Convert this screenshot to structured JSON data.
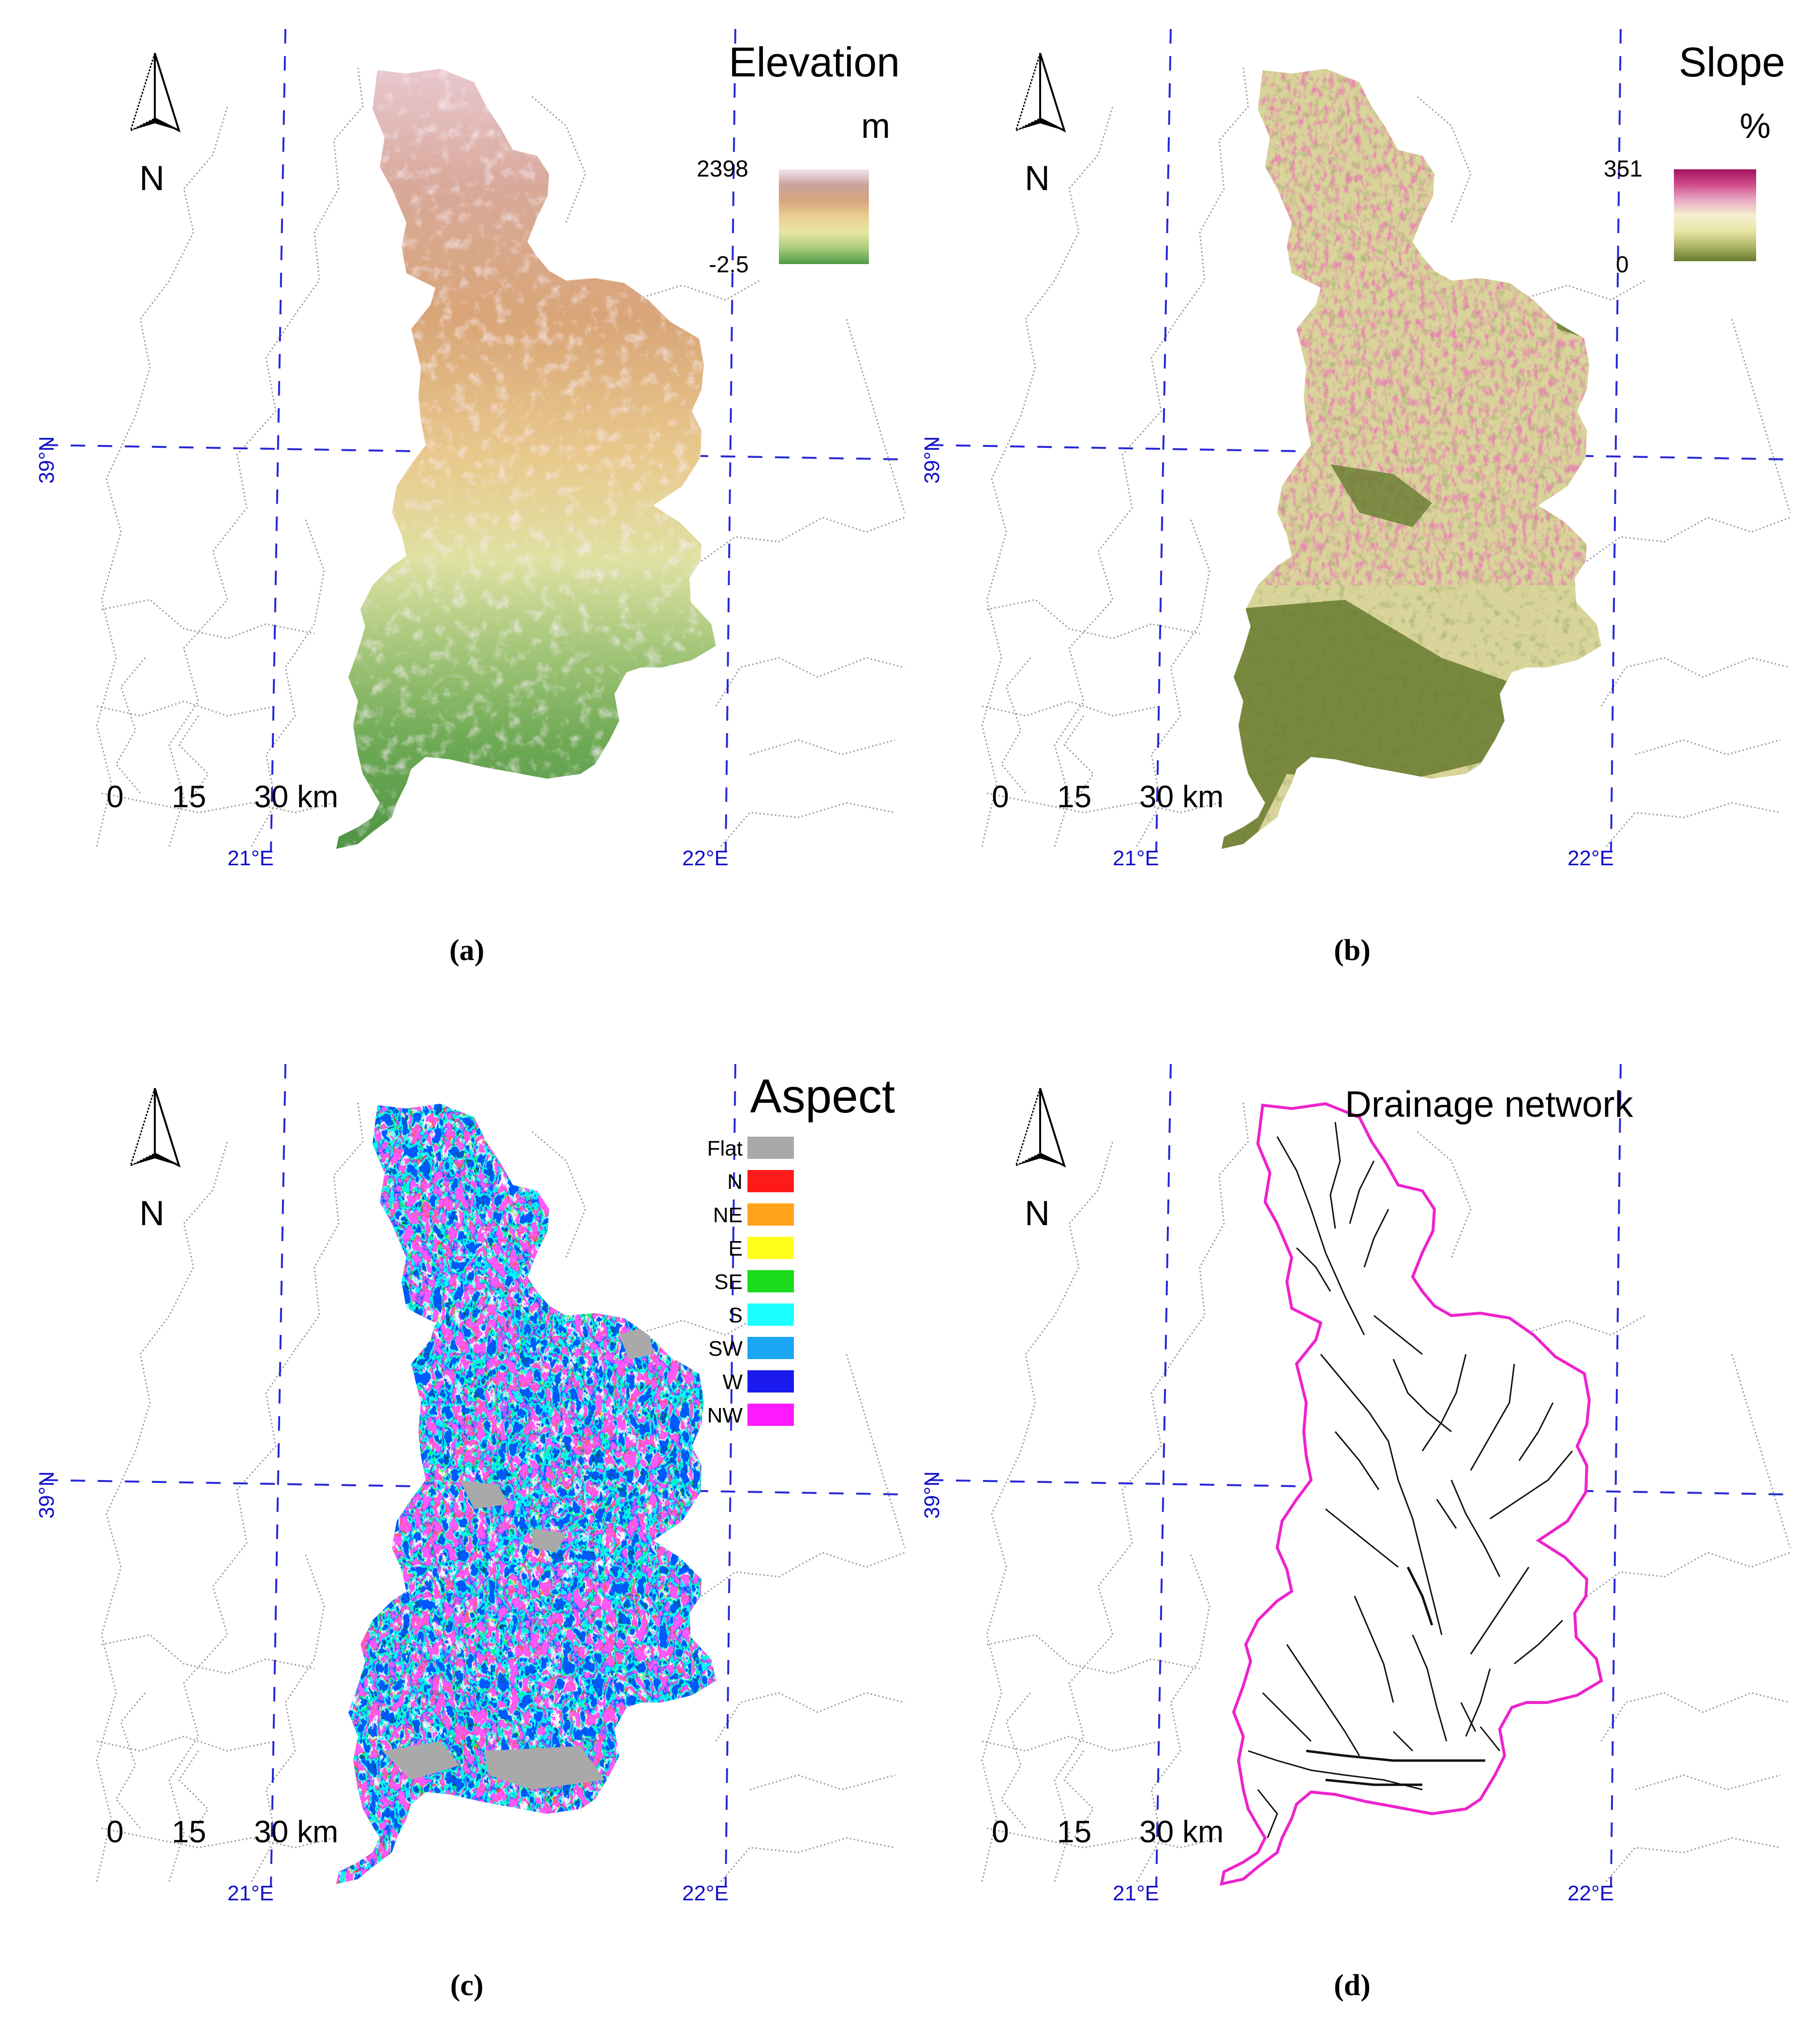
{
  "panels": [
    {
      "id": "a",
      "caption": "(a)",
      "title": "Elevation",
      "unit": "m",
      "scale_labels": [
        "0",
        "15",
        "30 km"
      ],
      "north_label": "N",
      "lon_labels": [
        "21°E",
        "22°E"
      ],
      "lat_label": "39°N",
      "colorbar": {
        "max": "2398",
        "min": "-2.5",
        "colors": [
          "#f4e4f0",
          "#c8a39a",
          "#d6a57c",
          "#eccf92",
          "#e7e6a4",
          "#a9cb7b",
          "#4f9a47"
        ]
      }
    },
    {
      "id": "b",
      "caption": "(b)",
      "title": "Slope",
      "unit": "%",
      "scale_labels": [
        "0",
        "15",
        "30 km"
      ],
      "north_label": "N",
      "lon_labels": [
        "21°E",
        "22°E"
      ],
      "lat_label": "39°N",
      "colorbar": {
        "max": "351",
        "min": "0",
        "colors": [
          "#a4125e",
          "#cf4c8b",
          "#eaa9c4",
          "#f4efcf",
          "#e9e7a8",
          "#b1b66b",
          "#667a2e"
        ]
      }
    },
    {
      "id": "c",
      "caption": "(c)",
      "title": "Aspect",
      "scale_labels": [
        "0",
        "15",
        "30 km"
      ],
      "north_label": "N",
      "lon_labels": [
        "21°E",
        "22°E"
      ],
      "lat_label": "39°N",
      "legend": [
        {
          "label": "Flat",
          "color": "#a9a9a9"
        },
        {
          "label": "N",
          "color": "#ff1a1a"
        },
        {
          "label": "NE",
          "color": "#ffa41a"
        },
        {
          "label": "E",
          "color": "#ffff1a"
        },
        {
          "label": "SE",
          "color": "#1adc1a"
        },
        {
          "label": "S",
          "color": "#1affff"
        },
        {
          "label": "SW",
          "color": "#1aa6f5"
        },
        {
          "label": "W",
          "color": "#1a1aee"
        },
        {
          "label": "NW",
          "color": "#ff1aff"
        }
      ]
    },
    {
      "id": "d",
      "caption": "(d)",
      "title": "Drainage network",
      "scale_labels": [
        "0",
        "15",
        "30 km"
      ],
      "north_label": "N",
      "lon_labels": [
        "21°E",
        "22°E"
      ],
      "lat_label": "39°N",
      "boundary_color": "#ee22cc"
    }
  ]
}
